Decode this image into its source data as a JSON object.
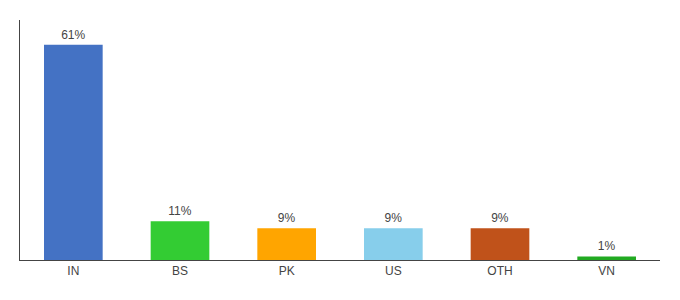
{
  "chart_data": {
    "type": "bar",
    "categories": [
      "IN",
      "BS",
      "PK",
      "US",
      "OTH",
      "VN"
    ],
    "values": [
      61,
      11,
      9,
      9,
      9,
      1
    ],
    "value_labels": [
      "61%",
      "11%",
      "9%",
      "9%",
      "9%",
      "1%"
    ],
    "colors": [
      "#4472C4",
      "#33CC33",
      "#FFA500",
      "#87CEEB",
      "#C0521A",
      "#22AA22"
    ],
    "ylim": [
      0,
      68
    ],
    "data_labels": true,
    "tick_labels": "x",
    "grid": false
  }
}
